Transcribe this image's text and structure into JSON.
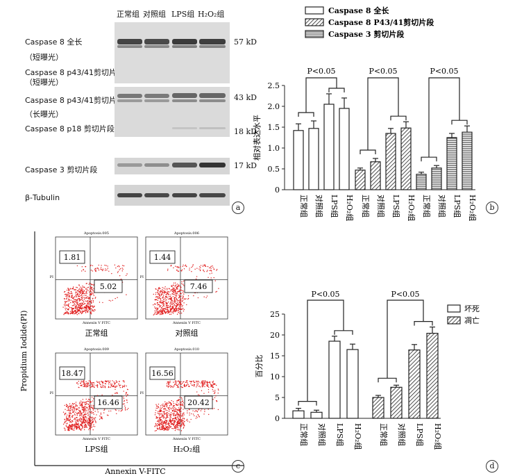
{
  "panel_a": {
    "columns": [
      "正常组",
      "对照组",
      "LPS组",
      "H₂O₂组"
    ],
    "rows": [
      {
        "label": "Caspase 8 全长",
        "kd": "57 kD"
      },
      {
        "label": "（短曝光）"
      },
      {
        "label": "Caspase 8 p43/41剪切片段"
      },
      {
        "label": "（短曝光）"
      },
      {
        "label": "Caspase 8 p43/41剪切片段",
        "kd": "43 kD"
      },
      {
        "label": "（长曝光）"
      },
      {
        "label": "Caspase 8 p18 剪切片段",
        "kd": "18 kD"
      },
      {
        "label": "Caspase 3 剪切片段",
        "kd": "17 kD"
      },
      {
        "label": "β-Tubulin"
      }
    ],
    "letter": "a"
  },
  "panel_b": {
    "letter": "b",
    "legend": [
      "Caspase 8 全长",
      "Caspase 8 P43/41剪切片段",
      "Caspase 3 剪切片段"
    ],
    "pvalue": "P<0.05",
    "chart_data": {
      "type": "bar",
      "ylabel": "相对表达水平",
      "ylim": [
        0,
        2.5
      ],
      "yticks": [
        "0",
        "0.5",
        "1.0",
        "1.5",
        "2.0",
        "2.5"
      ],
      "categories": [
        "正常组",
        "对照组",
        "LPS组",
        "H₂O₂组"
      ],
      "series": [
        {
          "name": "Caspase 8 全长",
          "values": [
            1.42,
            1.47,
            2.05,
            1.95
          ],
          "errors": [
            0.16,
            0.18,
            0.25,
            0.25
          ]
        },
        {
          "name": "Caspase 8 P43/41剪切片段",
          "values": [
            0.47,
            0.67,
            1.35,
            1.48
          ],
          "errors": [
            0.05,
            0.08,
            0.12,
            0.15
          ]
        },
        {
          "name": "Caspase 3 剪切片段",
          "values": [
            0.37,
            0.52,
            1.25,
            1.38
          ],
          "errors": [
            0.05,
            0.06,
            0.1,
            0.15
          ]
        }
      ]
    }
  },
  "panel_c": {
    "letter": "c",
    "ylabel": "Propidium Iodide(PI)",
    "xlabel": "Annexin V-FITC",
    "plots": [
      {
        "title": "Apoptosis.005",
        "upper": "1.81",
        "lower": "5.02",
        "caption": "正常组"
      },
      {
        "title": "Apoptosis.006",
        "upper": "1.44",
        "lower": "7.46",
        "caption": "对照组"
      },
      {
        "title": "Apoptosis.009",
        "upper": "18.47",
        "lower": "16.46",
        "caption": "LPS组"
      },
      {
        "title": "Apoptosis.010",
        "upper": "16.56",
        "lower": "20.42",
        "caption": "H₂O₂组"
      }
    ],
    "axis_x": "Annexin V FITC",
    "axis_y": "PI"
  },
  "panel_d": {
    "letter": "d",
    "pvalue": "P<0.05",
    "legend": [
      "坏死",
      "凋亡"
    ],
    "chart_data": {
      "type": "bar",
      "ylabel": "百分比",
      "ylim": [
        0,
        25
      ],
      "yticks": [
        "0",
        "5",
        "10",
        "15",
        "20",
        "25"
      ],
      "categories": [
        "正常组",
        "对照组",
        "LPS组",
        "H₂O₂组"
      ],
      "series": [
        {
          "name": "坏死",
          "values": [
            1.8,
            1.45,
            18.5,
            16.5
          ],
          "errors": [
            0.6,
            0.5,
            1.2,
            1.3
          ]
        },
        {
          "name": "凋亡",
          "values": [
            5.0,
            7.45,
            16.4,
            20.4
          ],
          "errors": [
            0.5,
            0.5,
            1.3,
            1.5
          ]
        }
      ]
    }
  }
}
